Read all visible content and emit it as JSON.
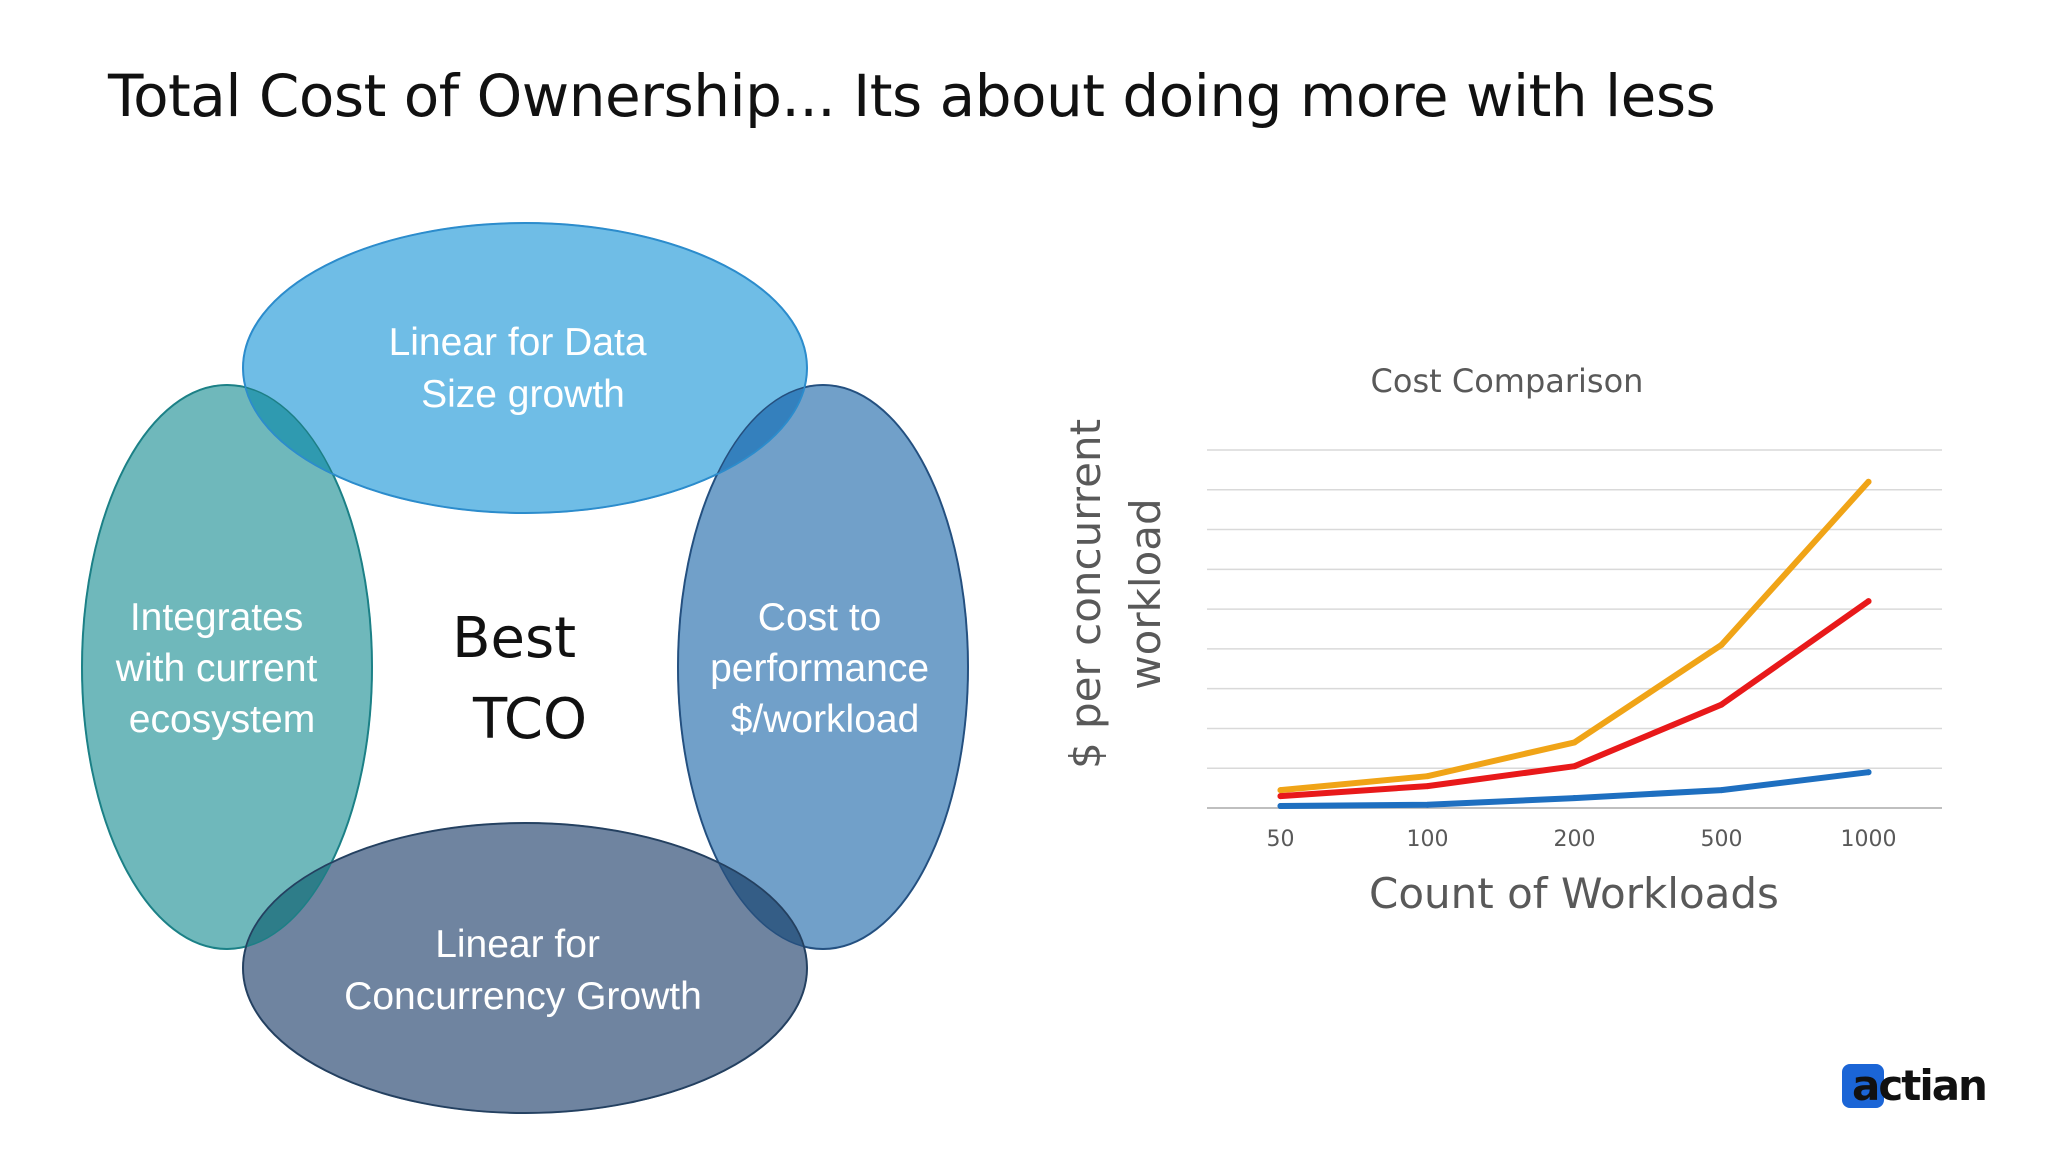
{
  "title": "Total Cost of Ownership... Its about doing more with less",
  "diagram": {
    "center": [
      "Best",
      "TCO"
    ],
    "top": [
      "Linear for Data",
      "Size growth"
    ],
    "left": [
      "Integrates",
      "with current",
      "ecosystem"
    ],
    "right": [
      "Cost to",
      "performance",
      "$/workload"
    ],
    "bottom": [
      "Linear for",
      "Concurrency Growth"
    ],
    "colors": {
      "top": "#6fbde6",
      "left": "#6fb8bb",
      "right": "#71a0c9",
      "bottom": "#6f84a0",
      "overlap_top_left": "#2f9ab0",
      "overlap_top_right": "#3480bd",
      "overlap_bottom_left": "#2e7d89",
      "overlap_bottom_right": "#345d86"
    }
  },
  "chart_data": {
    "type": "line",
    "title": "Cost Comparison",
    "xlabel": "Count of Workloads",
    "ylabel": "$ per concurrent workload",
    "categories": [
      "50",
      "100",
      "200",
      "500",
      "1000"
    ],
    "ylim": [
      0,
      9
    ],
    "y_gridlines": 9,
    "y_tick_labels": false,
    "legend": "none",
    "series": [
      {
        "color": "#f0a417",
        "values": [
          0.45,
          0.8,
          1.65,
          4.1,
          8.2
        ]
      },
      {
        "color": "#e8191a",
        "values": [
          0.3,
          0.55,
          1.05,
          2.6,
          5.2
        ]
      },
      {
        "color": "#1e6fc0",
        "values": [
          0.05,
          0.08,
          0.25,
          0.45,
          0.9
        ]
      }
    ]
  },
  "logo": {
    "text": "actian",
    "color": "#111111",
    "accent": "#1b65d6"
  }
}
